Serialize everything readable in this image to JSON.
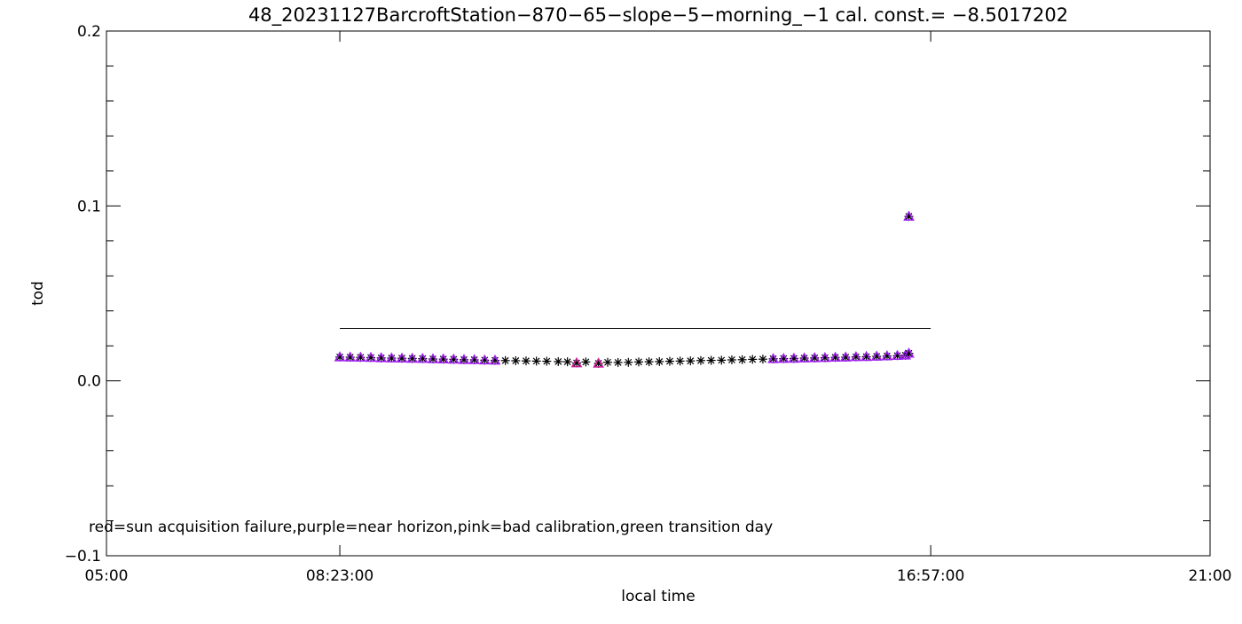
{
  "chart_data": {
    "type": "scatter",
    "title": "48_20231127BarcroftStation−870−65−slope−5−morning_−1 cal. const.= −8.5017202",
    "xlabel": "local time",
    "ylabel": "tod",
    "xlim": [
      "05:00",
      "21:00"
    ],
    "ylim": [
      -0.1,
      0.2
    ],
    "x_tick_labels": [
      "05:00",
      "08:23:00",
      "16:57:00",
      "21:00"
    ],
    "x_ticks": [
      "05:00",
      "08:23",
      "16:57",
      "21:00"
    ],
    "y_ticks": [
      -0.1,
      0.0,
      0.1,
      0.2
    ],
    "y_tick_labels": [
      "−0.1",
      "0.0",
      "0.1",
      "0.2"
    ],
    "y_minor_step": 0.02,
    "grid": false,
    "annotation": "red=sun acquisition failure,purple=near horizon,pink=bad calibration,green transition day",
    "reference_line": {
      "x_start": "08:23",
      "x_end": "16:57",
      "y": 0.03,
      "color": "#000000"
    },
    "colors": {
      "normal": "#000000",
      "near horizon": "#a020f0",
      "bad calibration": "#c81e96"
    },
    "points": [
      [
        "08:23",
        0.0136,
        "near horizon"
      ],
      [
        "08:32",
        0.0135,
        "near horizon"
      ],
      [
        "08:41",
        0.0134,
        "near horizon"
      ],
      [
        "08:50",
        0.0133,
        "near horizon"
      ],
      [
        "08:59",
        0.0131,
        "near horizon"
      ],
      [
        "09:08",
        0.013,
        "near horizon"
      ],
      [
        "09:17",
        0.0129,
        "near horizon"
      ],
      [
        "09:26",
        0.0128,
        "near horizon"
      ],
      [
        "09:35",
        0.0127,
        "near horizon"
      ],
      [
        "09:44",
        0.0125,
        "near horizon"
      ],
      [
        "09:53",
        0.0124,
        "near horizon"
      ],
      [
        "10:02",
        0.0123,
        "near horizon"
      ],
      [
        "10:11",
        0.0121,
        "near horizon"
      ],
      [
        "10:20",
        0.012,
        "near horizon"
      ],
      [
        "10:29",
        0.0118,
        "near horizon"
      ],
      [
        "10:38",
        0.0117,
        "near horizon"
      ],
      [
        "10:47",
        0.0116,
        "normal"
      ],
      [
        "10:56",
        0.0115,
        "normal"
      ],
      [
        "11:05",
        0.0114,
        "normal"
      ],
      [
        "11:14",
        0.0113,
        "normal"
      ],
      [
        "11:23",
        0.0112,
        "normal"
      ],
      [
        "11:33",
        0.011,
        "normal"
      ],
      [
        "11:41",
        0.0109,
        "normal"
      ],
      [
        "11:49",
        0.0102,
        "bad calibration"
      ],
      [
        "11:57",
        0.0108,
        "normal"
      ],
      [
        "12:08",
        0.01,
        "bad calibration"
      ],
      [
        "12:16",
        0.0106,
        "normal"
      ],
      [
        "12:25",
        0.0105,
        "normal"
      ],
      [
        "12:34",
        0.0106,
        "normal"
      ],
      [
        "12:43",
        0.0108,
        "normal"
      ],
      [
        "12:52",
        0.0109,
        "normal"
      ],
      [
        "13:01",
        0.011,
        "normal"
      ],
      [
        "13:10",
        0.0112,
        "normal"
      ],
      [
        "13:19",
        0.0113,
        "normal"
      ],
      [
        "13:28",
        0.0114,
        "normal"
      ],
      [
        "13:37",
        0.0116,
        "normal"
      ],
      [
        "13:46",
        0.0117,
        "normal"
      ],
      [
        "13:55",
        0.0118,
        "normal"
      ],
      [
        "14:04",
        0.012,
        "normal"
      ],
      [
        "14:13",
        0.0121,
        "normal"
      ],
      [
        "14:22",
        0.0123,
        "normal"
      ],
      [
        "14:31",
        0.0124,
        "normal"
      ],
      [
        "14:40",
        0.0126,
        "near horizon"
      ],
      [
        "14:49",
        0.0127,
        "near horizon"
      ],
      [
        "14:58",
        0.0128,
        "near horizon"
      ],
      [
        "15:07",
        0.013,
        "near horizon"
      ],
      [
        "15:16",
        0.0131,
        "near horizon"
      ],
      [
        "15:25",
        0.0132,
        "near horizon"
      ],
      [
        "15:34",
        0.0134,
        "near horizon"
      ],
      [
        "15:43",
        0.0135,
        "near horizon"
      ],
      [
        "15:52",
        0.0137,
        "near horizon"
      ],
      [
        "16:01",
        0.0138,
        "near horizon"
      ],
      [
        "16:10",
        0.014,
        "near horizon"
      ],
      [
        "16:19",
        0.0142,
        "near horizon"
      ],
      [
        "16:28",
        0.0144,
        "near horizon"
      ],
      [
        "16:35",
        0.0146,
        "near horizon"
      ],
      [
        "16:38",
        0.0157,
        "near horizon"
      ],
      [
        "16:38",
        0.094,
        "near horizon"
      ]
    ]
  }
}
